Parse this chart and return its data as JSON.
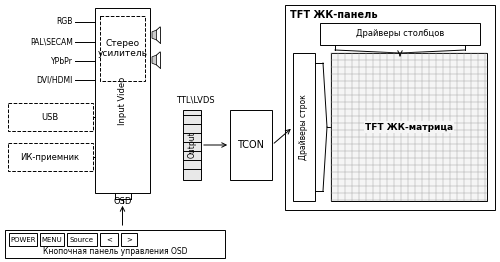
{
  "bg_color": "#ffffff",
  "input_labels": [
    "RGB",
    "PAL\\SECAM",
    "YPbPr",
    "DVI/HDMI"
  ],
  "input_video_label": "Input Video",
  "stereo_label": "Стерео\nусилитель",
  "ttl_label": "TTL\\LVDS",
  "output_label": "Output",
  "osd_label": "OSD",
  "tcon_label": "TCON",
  "row_drivers_label": "Драйверы строк",
  "col_drivers_label": "Драйверы столбцов",
  "matrix_label": "TFT ЖК-матрица",
  "usb_label": "USB",
  "ir_label": "ИК-приемник",
  "panel_label": "TFT ЖК-панель",
  "keypad_label": "Кнопочная панель управления OSD",
  "buttons": [
    "POWER",
    "MENU",
    "Source",
    "<",
    ">"
  ],
  "btn_widths": [
    28,
    24,
    30,
    18,
    16
  ]
}
